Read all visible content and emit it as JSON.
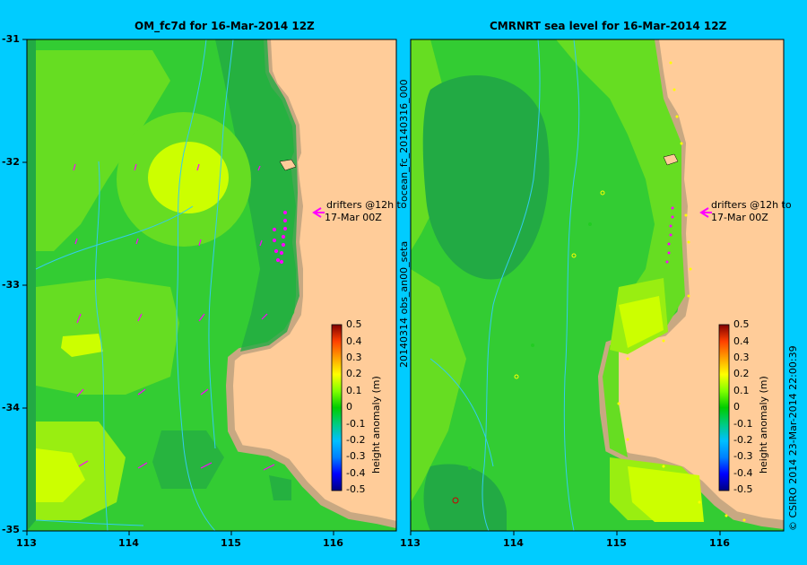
{
  "left_panel": {
    "title": "OM_fc7d for 16-Mar-2014 12Z",
    "drifter_note_line1": "drifters @12h to",
    "drifter_note_line2": "17-Mar 00Z",
    "colorbar_label": "height anomaly (m)"
  },
  "right_panel": {
    "title": "CMRNRT sea level  for 16-Mar-2014 12Z",
    "drifter_note_line1": "drifters @12h to",
    "drifter_note_line2": "17-Mar 00Z",
    "colorbar_label": "height anomaly (m)",
    "side_label_top": "ocean_fc_20140316_000",
    "side_label_bottom": "20140314 obs_an00_seta"
  },
  "credit": "© CSIRO 2014   23-Mar-2014 22:00:39",
  "lat_ticks": [
    "-31",
    "-32",
    "-33",
    "-34",
    "-35"
  ],
  "lon_ticks_left": [
    "113",
    "114",
    "115",
    "116"
  ],
  "lon_ticks_right": [
    "113",
    "114",
    "115",
    "116"
  ],
  "colorbar_ticks": [
    "0.5",
    "0.4",
    "0.3",
    "0.2",
    "0.1",
    "0",
    "-0.1",
    "-0.2",
    "-0.3",
    "-0.4",
    "-0.5"
  ],
  "colors": {
    "background": "#00ccff",
    "land": "#ffcc99",
    "coast": "#c8a882",
    "arrow": "#ff00ff"
  }
}
